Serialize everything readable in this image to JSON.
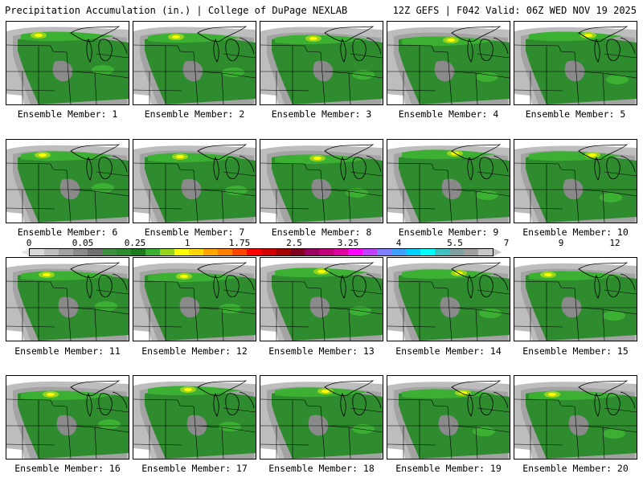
{
  "header": {
    "left": "Precipitation Accumulation (in.) | College of DuPage NEXLAB",
    "right": "12Z GEFS | F042 Valid: 06Z WED NOV 19 2025"
  },
  "colorbar": {
    "tick_labels": [
      "0",
      "0.05",
      "0.25",
      "1",
      "1.75",
      "2.5",
      "3.25",
      "4",
      "5.5",
      "7",
      "9",
      "12"
    ],
    "colors": [
      "#d9d9d9",
      "#bdbdbd",
      "#a3a3a3",
      "#8a8a8a",
      "#707070",
      "#3d9140",
      "#2e8b2e",
      "#1f7a1f",
      "#3cb033",
      "#98d41e",
      "#ffff00",
      "#ffd700",
      "#ffa500",
      "#ff7f00",
      "#ff4500",
      "#ff0000",
      "#d40000",
      "#a50000",
      "#800020",
      "#9c0060",
      "#c0007a",
      "#e000a0",
      "#ff00ff",
      "#c040ff",
      "#8080ff",
      "#40a0ff",
      "#00d0ff",
      "#00ffff",
      "#40c0c0",
      "#80a0a0",
      "#a0a0a0",
      "#c8c8c8"
    ]
  },
  "members": [
    {
      "label": "Ensemble Member: 1"
    },
    {
      "label": "Ensemble Member: 2"
    },
    {
      "label": "Ensemble Member: 3"
    },
    {
      "label": "Ensemble Member: 4"
    },
    {
      "label": "Ensemble Member: 5"
    },
    {
      "label": "Ensemble Member: 6"
    },
    {
      "label": "Ensemble Member: 7"
    },
    {
      "label": "Ensemble Member: 8"
    },
    {
      "label": "Ensemble Member: 9"
    },
    {
      "label": "Ensemble Member: 10"
    },
    {
      "label": "Ensemble Member: 11"
    },
    {
      "label": "Ensemble Member: 12"
    },
    {
      "label": "Ensemble Member: 13"
    },
    {
      "label": "Ensemble Member: 14"
    },
    {
      "label": "Ensemble Member: 15"
    },
    {
      "label": "Ensemble Member: 16"
    },
    {
      "label": "Ensemble Member: 17"
    },
    {
      "label": "Ensemble Member: 18"
    },
    {
      "label": "Ensemble Member: 19"
    },
    {
      "label": "Ensemble Member: 20"
    }
  ]
}
